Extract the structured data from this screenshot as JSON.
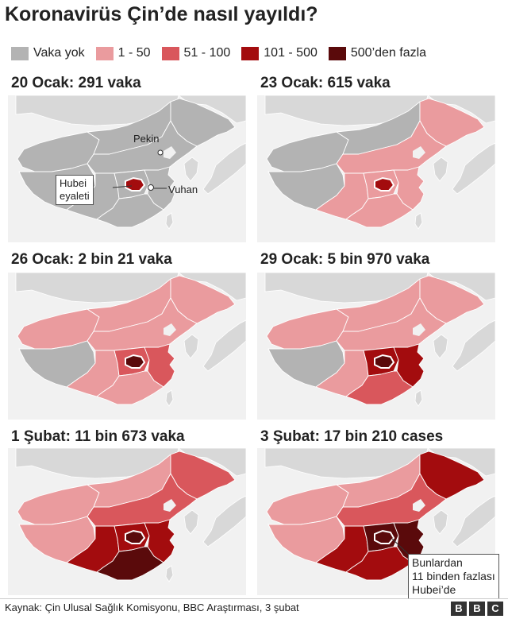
{
  "title": "Koronavirüs Çin’de nasıl yayıldı?",
  "legend": [
    {
      "label": "Vaka yok",
      "color": "#b3b3b3"
    },
    {
      "label": "1 - 50",
      "color": "#ea9b9e"
    },
    {
      "label": "51 - 100",
      "color": "#d9575c"
    },
    {
      "label": "101 - 500",
      "color": "#a30c0e"
    },
    {
      "label": "500’den fazla",
      "color": "#5a0a0b"
    }
  ],
  "panels": [
    {
      "title": "20 Ocak: 291 vaka"
    },
    {
      "title": "23 Ocak: 615 vaka"
    },
    {
      "title": "26 Ocak: 2 bin 21 vaka"
    },
    {
      "title": "29 Ocak: 5 bin 970 vaka"
    },
    {
      "title": "1 Şubat: 11 bin 673 vaka"
    },
    {
      "title": "3 Şubat: 17 bin 210 cases"
    }
  ],
  "annotations": {
    "beijing": "Pekin",
    "wuhan": "Vuhan",
    "hubei_line1": "Hubei",
    "hubei_line2": "eyaleti",
    "note_line1": "Bunlardan",
    "note_line2": "11 binden fazlası",
    "note_line3": "Hubei’de"
  },
  "footer": {
    "source": "Kaynak: Çin Ulusal Sağlık Komisyonu, BBC Araştırması, 3 şubat",
    "logo": [
      "B",
      "B",
      "C"
    ]
  },
  "colors": {
    "none": "#b3b3b3",
    "low": "#ea9b9e",
    "mid": "#d9575c",
    "high": "#a30c0e",
    "vhigh": "#5a0a0b",
    "neighbor": "#d8d8d8",
    "sea": "#f1f1f1"
  }
}
